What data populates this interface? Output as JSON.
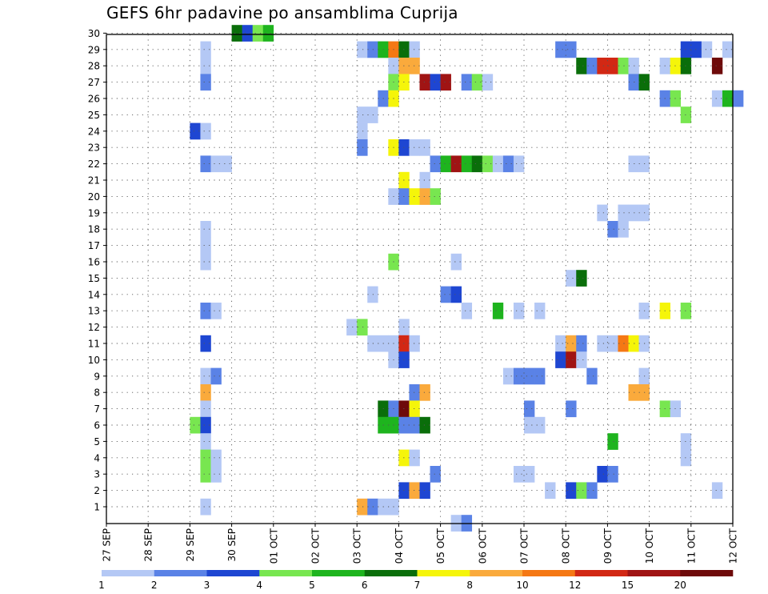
{
  "chart_data": {
    "type": "heatmap",
    "title": "GEFS 6hr padavine po ansamblima Cuprija",
    "x_tick_labels": [
      "27 SEP",
      "28 SEP",
      "29 SEP",
      "30 SEP",
      "01 OCT",
      "02 OCT",
      "03 OCT",
      "04 OCT",
      "05 OCT",
      "06 OCT",
      "07 OCT",
      "08 OCT",
      "09 OCT",
      "10 OCT",
      "11 OCT",
      "12 OCT"
    ],
    "y_tick_labels": [
      "1",
      "2",
      "3",
      "4",
      "5",
      "6",
      "7",
      "8",
      "9",
      "10",
      "11",
      "12",
      "13",
      "14",
      "15",
      "16",
      "17",
      "18",
      "19",
      "20",
      "21",
      "22",
      "23",
      "24",
      "25",
      "26",
      "27",
      "28",
      "29",
      "30"
    ],
    "time_step_hours": 6,
    "members_range": [
      1,
      30
    ],
    "grid": true,
    "levels": [
      1,
      2,
      3,
      4,
      5,
      6,
      7,
      8,
      10,
      12,
      15,
      20
    ],
    "level_labels": [
      "1",
      "2",
      "3",
      "4",
      "5",
      "6",
      "7",
      "8",
      "10",
      "12",
      "15",
      "20"
    ],
    "colors": [
      "#b4c8f5",
      "#5a82e6",
      "#1e46d2",
      "#78e650",
      "#1eb41e",
      "#0a6e0a",
      "#f5f50a",
      "#faaa3c",
      "#f57814",
      "#d22814",
      "#a01414",
      "#6e0a0a"
    ],
    "cells": [
      {
        "member": 30,
        "date": "30 SEP 00Z",
        "level": 6
      },
      {
        "member": 30,
        "date": "30 SEP 06Z",
        "level": 3
      },
      {
        "member": 30,
        "date": "30 SEP 12Z",
        "level": 4
      },
      {
        "member": 30,
        "date": "30 SEP 18Z",
        "level": 5
      },
      {
        "member": 29,
        "date": "29 SEP 06Z",
        "level": 1
      },
      {
        "member": 29,
        "date": "03 OCT 00Z",
        "level": 1
      },
      {
        "member": 29,
        "date": "03 OCT 06Z",
        "level": 2
      },
      {
        "member": 29,
        "date": "03 OCT 12Z",
        "level": 5
      },
      {
        "member": 29,
        "date": "03 OCT 18Z",
        "level": 9
      },
      {
        "member": 29,
        "date": "04 OCT 00Z",
        "level": 6
      },
      {
        "member": 29,
        "date": "04 OCT 06Z",
        "level": 1
      },
      {
        "member": 29,
        "date": "07 OCT 18Z",
        "level": 2
      },
      {
        "member": 29,
        "date": "08 OCT 00Z",
        "level": 2
      },
      {
        "member": 29,
        "date": "10 OCT 18Z",
        "level": 3
      },
      {
        "member": 29,
        "date": "11 OCT 00Z",
        "level": 3
      },
      {
        "member": 29,
        "date": "11 OCT 06Z",
        "level": 1
      },
      {
        "member": 29,
        "date": "11 OCT 18Z",
        "level": 1
      },
      {
        "member": 28,
        "date": "29 SEP 06Z",
        "level": 1
      },
      {
        "member": 28,
        "date": "03 OCT 18Z",
        "level": 1
      },
      {
        "member": 28,
        "date": "04 OCT 00Z",
        "level": 8
      },
      {
        "member": 28,
        "date": "04 OCT 06Z",
        "level": 8
      },
      {
        "member": 28,
        "date": "08 OCT 06Z",
        "level": 6
      },
      {
        "member": 28,
        "date": "08 OCT 12Z",
        "level": 2
      },
      {
        "member": 28,
        "date": "08 OCT 18Z",
        "level": 10
      },
      {
        "member": 28,
        "date": "09 OCT 00Z",
        "level": 10
      },
      {
        "member": 28,
        "date": "09 OCT 06Z",
        "level": 4
      },
      {
        "member": 28,
        "date": "09 OCT 12Z",
        "level": 1
      },
      {
        "member": 28,
        "date": "10 OCT 06Z",
        "level": 1
      },
      {
        "member": 28,
        "date": "10 OCT 12Z",
        "level": 7
      },
      {
        "member": 28,
        "date": "10 OCT 18Z",
        "level": 6
      },
      {
        "member": 28,
        "date": "11 OCT 12Z",
        "level": 12
      },
      {
        "member": 27,
        "date": "29 SEP 06Z",
        "level": 2
      },
      {
        "member": 27,
        "date": "03 OCT 18Z",
        "level": 4
      },
      {
        "member": 27,
        "date": "04 OCT 00Z",
        "level": 7
      },
      {
        "member": 27,
        "date": "04 OCT 12Z",
        "level": 11
      },
      {
        "member": 27,
        "date": "04 OCT 18Z",
        "level": 3
      },
      {
        "member": 27,
        "date": "05 OCT 00Z",
        "level": 11
      },
      {
        "member": 27,
        "date": "05 OCT 12Z",
        "level": 2
      },
      {
        "member": 27,
        "date": "05 OCT 18Z",
        "level": 4
      },
      {
        "member": 27,
        "date": "06 OCT 00Z",
        "level": 1
      },
      {
        "member": 27,
        "date": "09 OCT 12Z",
        "level": 2
      },
      {
        "member": 27,
        "date": "09 OCT 18Z",
        "level": 6
      },
      {
        "member": 26,
        "date": "03 OCT 12Z",
        "level": 2
      },
      {
        "member": 26,
        "date": "03 OCT 18Z",
        "level": 7
      },
      {
        "member": 26,
        "date": "10 OCT 06Z",
        "level": 2
      },
      {
        "member": 26,
        "date": "10 OCT 12Z",
        "level": 4
      },
      {
        "member": 26,
        "date": "11 OCT 12Z",
        "level": 1
      },
      {
        "member": 26,
        "date": "11 OCT 18Z",
        "level": 5
      },
      {
        "member": 26,
        "date": "12 OCT 00Z",
        "level": 2
      },
      {
        "member": 25,
        "date": "03 OCT 00Z",
        "level": 1
      },
      {
        "member": 25,
        "date": "03 OCT 06Z",
        "level": 1
      },
      {
        "member": 25,
        "date": "10 OCT 18Z",
        "level": 4
      },
      {
        "member": 24,
        "date": "29 SEP 00Z",
        "level": 3
      },
      {
        "member": 24,
        "date": "29 SEP 06Z",
        "level": 1
      },
      {
        "member": 24,
        "date": "03 OCT 00Z",
        "level": 1
      },
      {
        "member": 23,
        "date": "03 OCT 00Z",
        "level": 2
      },
      {
        "member": 23,
        "date": "03 OCT 18Z",
        "level": 7
      },
      {
        "member": 23,
        "date": "04 OCT 00Z",
        "level": 3
      },
      {
        "member": 23,
        "date": "04 OCT 06Z",
        "level": 1
      },
      {
        "member": 23,
        "date": "04 OCT 12Z",
        "level": 1
      },
      {
        "member": 22,
        "date": "29 SEP 06Z",
        "level": 2
      },
      {
        "member": 22,
        "date": "29 SEP 12Z",
        "level": 1
      },
      {
        "member": 22,
        "date": "29 SEP 18Z",
        "level": 1
      },
      {
        "member": 22,
        "date": "04 OCT 18Z",
        "level": 2
      },
      {
        "member": 22,
        "date": "05 OCT 00Z",
        "level": 5
      },
      {
        "member": 22,
        "date": "05 OCT 06Z",
        "level": 11
      },
      {
        "member": 22,
        "date": "05 OCT 12Z",
        "level": 5
      },
      {
        "member": 22,
        "date": "05 OCT 18Z",
        "level": 6
      },
      {
        "member": 22,
        "date": "06 OCT 00Z",
        "level": 4
      },
      {
        "member": 22,
        "date": "06 OCT 06Z",
        "level": 1
      },
      {
        "member": 22,
        "date": "06 OCT 12Z",
        "level": 2
      },
      {
        "member": 22,
        "date": "06 OCT 18Z",
        "level": 1
      },
      {
        "member": 22,
        "date": "09 OCT 12Z",
        "level": 1
      },
      {
        "member": 22,
        "date": "09 OCT 18Z",
        "level": 1
      },
      {
        "member": 21,
        "date": "04 OCT 00Z",
        "level": 7
      },
      {
        "member": 21,
        "date": "04 OCT 12Z",
        "level": 1
      },
      {
        "member": 20,
        "date": "03 OCT 18Z",
        "level": 1
      },
      {
        "member": 20,
        "date": "04 OCT 00Z",
        "level": 2
      },
      {
        "member": 20,
        "date": "04 OCT 06Z",
        "level": 7
      },
      {
        "member": 20,
        "date": "04 OCT 12Z",
        "level": 8
      },
      {
        "member": 20,
        "date": "04 OCT 18Z",
        "level": 4
      },
      {
        "member": 19,
        "date": "08 OCT 18Z",
        "level": 1
      },
      {
        "member": 19,
        "date": "09 OCT 06Z",
        "level": 1
      },
      {
        "member": 19,
        "date": "09 OCT 12Z",
        "level": 1
      },
      {
        "member": 19,
        "date": "09 OCT 18Z",
        "level": 1
      },
      {
        "member": 18,
        "date": "29 SEP 06Z",
        "level": 1
      },
      {
        "member": 18,
        "date": "09 OCT 00Z",
        "level": 2
      },
      {
        "member": 18,
        "date": "09 OCT 06Z",
        "level": 1
      },
      {
        "member": 17,
        "date": "29 SEP 06Z",
        "level": 1
      },
      {
        "member": 16,
        "date": "29 SEP 06Z",
        "level": 1
      },
      {
        "member": 16,
        "date": "03 OCT 18Z",
        "level": 4
      },
      {
        "member": 16,
        "date": "05 OCT 06Z",
        "level": 1
      },
      {
        "member": 15,
        "date": "08 OCT 00Z",
        "level": 1
      },
      {
        "member": 15,
        "date": "08 OCT 06Z",
        "level": 6
      },
      {
        "member": 14,
        "date": "03 OCT 06Z",
        "level": 1
      },
      {
        "member": 14,
        "date": "05 OCT 00Z",
        "level": 2
      },
      {
        "member": 14,
        "date": "05 OCT 06Z",
        "level": 3
      },
      {
        "member": 13,
        "date": "29 SEP 06Z",
        "level": 2
      },
      {
        "member": 13,
        "date": "29 SEP 12Z",
        "level": 1
      },
      {
        "member": 13,
        "date": "05 OCT 12Z",
        "level": 1
      },
      {
        "member": 13,
        "date": "06 OCT 06Z",
        "level": 5
      },
      {
        "member": 13,
        "date": "06 OCT 18Z",
        "level": 1
      },
      {
        "member": 13,
        "date": "07 OCT 06Z",
        "level": 1
      },
      {
        "member": 13,
        "date": "09 OCT 18Z",
        "level": 1
      },
      {
        "member": 13,
        "date": "10 OCT 06Z",
        "level": 7
      },
      {
        "member": 13,
        "date": "10 OCT 18Z",
        "level": 4
      },
      {
        "member": 12,
        "date": "02 OCT 18Z",
        "level": 1
      },
      {
        "member": 12,
        "date": "03 OCT 00Z",
        "level": 4
      },
      {
        "member": 12,
        "date": "04 OCT 00Z",
        "level": 1
      },
      {
        "member": 11,
        "date": "29 SEP 06Z",
        "level": 3
      },
      {
        "member": 11,
        "date": "03 OCT 06Z",
        "level": 1
      },
      {
        "member": 11,
        "date": "03 OCT 12Z",
        "level": 1
      },
      {
        "member": 11,
        "date": "03 OCT 18Z",
        "level": 1
      },
      {
        "member": 11,
        "date": "04 OCT 00Z",
        "level": 10
      },
      {
        "member": 11,
        "date": "04 OCT 06Z",
        "level": 1
      },
      {
        "member": 11,
        "date": "07 OCT 18Z",
        "level": 1
      },
      {
        "member": 11,
        "date": "08 OCT 00Z",
        "level": 8
      },
      {
        "member": 11,
        "date": "08 OCT 06Z",
        "level": 2
      },
      {
        "member": 11,
        "date": "08 OCT 18Z",
        "level": 1
      },
      {
        "member": 11,
        "date": "09 OCT 00Z",
        "level": 1
      },
      {
        "member": 11,
        "date": "09 OCT 06Z",
        "level": 9
      },
      {
        "member": 11,
        "date": "09 OCT 12Z",
        "level": 7
      },
      {
        "member": 11,
        "date": "09 OCT 18Z",
        "level": 1
      },
      {
        "member": 10,
        "date": "03 OCT 18Z",
        "level": 1
      },
      {
        "member": 10,
        "date": "04 OCT 00Z",
        "level": 3
      },
      {
        "member": 10,
        "date": "07 OCT 18Z",
        "level": 3
      },
      {
        "member": 10,
        "date": "08 OCT 00Z",
        "level": 11
      },
      {
        "member": 10,
        "date": "08 OCT 06Z",
        "level": 1
      },
      {
        "member": 9,
        "date": "29 SEP 06Z",
        "level": 1
      },
      {
        "member": 9,
        "date": "29 SEP 12Z",
        "level": 2
      },
      {
        "member": 9,
        "date": "06 OCT 12Z",
        "level": 1
      },
      {
        "member": 9,
        "date": "06 OCT 18Z",
        "level": 2
      },
      {
        "member": 9,
        "date": "07 OCT 00Z",
        "level": 2
      },
      {
        "member": 9,
        "date": "07 OCT 06Z",
        "level": 2
      },
      {
        "member": 9,
        "date": "08 OCT 12Z",
        "level": 2
      },
      {
        "member": 9,
        "date": "09 OCT 18Z",
        "level": 1
      },
      {
        "member": 8,
        "date": "29 SEP 06Z",
        "level": 8
      },
      {
        "member": 8,
        "date": "04 OCT 06Z",
        "level": 2
      },
      {
        "member": 8,
        "date": "04 OCT 12Z",
        "level": 8
      },
      {
        "member": 8,
        "date": "09 OCT 12Z",
        "level": 8
      },
      {
        "member": 8,
        "date": "09 OCT 18Z",
        "level": 8
      },
      {
        "member": 7,
        "date": "29 SEP 06Z",
        "level": 1
      },
      {
        "member": 7,
        "date": "03 OCT 12Z",
        "level": 6
      },
      {
        "member": 7,
        "date": "03 OCT 18Z",
        "level": 2
      },
      {
        "member": 7,
        "date": "04 OCT 00Z",
        "level": 12
      },
      {
        "member": 7,
        "date": "04 OCT 06Z",
        "level": 7
      },
      {
        "member": 7,
        "date": "07 OCT 00Z",
        "level": 2
      },
      {
        "member": 7,
        "date": "08 OCT 00Z",
        "level": 2
      },
      {
        "member": 7,
        "date": "10 OCT 06Z",
        "level": 4
      },
      {
        "member": 7,
        "date": "10 OCT 12Z",
        "level": 1
      },
      {
        "member": 6,
        "date": "29 SEP 00Z",
        "level": 4
      },
      {
        "member": 6,
        "date": "29 SEP 06Z",
        "level": 3
      },
      {
        "member": 6,
        "date": "03 OCT 12Z",
        "level": 5
      },
      {
        "member": 6,
        "date": "03 OCT 18Z",
        "level": 5
      },
      {
        "member": 6,
        "date": "04 OCT 00Z",
        "level": 2
      },
      {
        "member": 6,
        "date": "04 OCT 06Z",
        "level": 2
      },
      {
        "member": 6,
        "date": "04 OCT 12Z",
        "level": 6
      },
      {
        "member": 6,
        "date": "07 OCT 00Z",
        "level": 1
      },
      {
        "member": 6,
        "date": "07 OCT 06Z",
        "level": 1
      },
      {
        "member": 5,
        "date": "29 SEP 06Z",
        "level": 1
      },
      {
        "member": 5,
        "date": "09 OCT 00Z",
        "level": 5
      },
      {
        "member": 5,
        "date": "10 OCT 18Z",
        "level": 1
      },
      {
        "member": 4,
        "date": "29 SEP 06Z",
        "level": 4
      },
      {
        "member": 4,
        "date": "29 SEP 12Z",
        "level": 1
      },
      {
        "member": 4,
        "date": "04 OCT 00Z",
        "level": 7
      },
      {
        "member": 4,
        "date": "04 OCT 06Z",
        "level": 1
      },
      {
        "member": 4,
        "date": "10 OCT 18Z",
        "level": 1
      },
      {
        "member": 3,
        "date": "29 SEP 06Z",
        "level": 4
      },
      {
        "member": 3,
        "date": "29 SEP 12Z",
        "level": 1
      },
      {
        "member": 3,
        "date": "04 OCT 18Z",
        "level": 2
      },
      {
        "member": 3,
        "date": "06 OCT 18Z",
        "level": 1
      },
      {
        "member": 3,
        "date": "07 OCT 00Z",
        "level": 1
      },
      {
        "member": 3,
        "date": "08 OCT 18Z",
        "level": 3
      },
      {
        "member": 3,
        "date": "09 OCT 00Z",
        "level": 2
      },
      {
        "member": 2,
        "date": "04 OCT 00Z",
        "level": 3
      },
      {
        "member": 2,
        "date": "04 OCT 06Z",
        "level": 8
      },
      {
        "member": 2,
        "date": "04 OCT 12Z",
        "level": 3
      },
      {
        "member": 2,
        "date": "07 OCT 12Z",
        "level": 1
      },
      {
        "member": 2,
        "date": "08 OCT 00Z",
        "level": 3
      },
      {
        "member": 2,
        "date": "08 OCT 06Z",
        "level": 4
      },
      {
        "member": 2,
        "date": "08 OCT 12Z",
        "level": 2
      },
      {
        "member": 2,
        "date": "11 OCT 12Z",
        "level": 1
      },
      {
        "member": 1,
        "date": "29 SEP 06Z",
        "level": 1
      },
      {
        "member": 1,
        "date": "03 OCT 00Z",
        "level": 8
      },
      {
        "member": 1,
        "date": "03 OCT 06Z",
        "level": 2
      },
      {
        "member": 1,
        "date": "03 OCT 12Z",
        "level": 1
      },
      {
        "member": 1,
        "date": "03 OCT 18Z",
        "level": 1
      },
      {
        "member": 0,
        "date": "05 OCT 06Z",
        "level": 1
      },
      {
        "member": 0,
        "date": "05 OCT 12Z",
        "level": 2
      }
    ]
  }
}
